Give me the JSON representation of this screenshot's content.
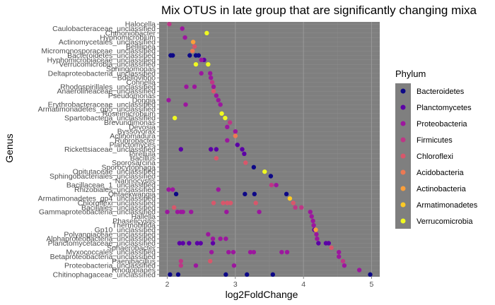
{
  "chart_data": {
    "type": "scatter",
    "title": "Mix OTUS in late group that are significantly changing mixa",
    "xlabel": "log2FoldChange",
    "ylabel": "Genus",
    "xlim": [
      1.88,
      5.12
    ],
    "xticks": [
      2,
      3,
      4,
      5
    ],
    "x_grid": true,
    "y_grid": true,
    "legend": {
      "title": "Phylum",
      "placement": "right",
      "entries": [
        {
          "name": "Bacteroidetes",
          "color": "#0d0887"
        },
        {
          "name": "Planctomycetes",
          "color": "#5c01a6"
        },
        {
          "name": "Proteobacteria",
          "color": "#9c179e"
        },
        {
          "name": "Firmicutes",
          "color": "#bd3786"
        },
        {
          "name": "Chloroflexi",
          "color": "#d8576b"
        },
        {
          "name": "Acidobacteria",
          "color": "#ed7953"
        },
        {
          "name": "Actinobacteria",
          "color": "#fb9f3a"
        },
        {
          "name": "Armatimonadetes",
          "color": "#fdca26"
        },
        {
          "name": "Verrucomicrobia",
          "color": "#f0f921"
        }
      ]
    },
    "genera": [
      "Halocella",
      "Caulobacteraceae_unclassified",
      "Chthoniobacter",
      "Hyphomicrobium",
      "Actinomycetales_unclassified",
      "Bellilinea",
      "Micromonosporaceae_unclassified",
      "Bacteroidetes_unclassified",
      "Hyphomicrobiaceae_unclassified",
      "Verrucomicrobia_unclassified",
      "Sphingomonas",
      "Deltaproteobacteria_unclassified",
      "Bdellovibrio",
      "Cohnella",
      "Rhodospirillales_unclassified",
      "Anaerolineaceae_unclassified",
      "Pseudomonas",
      "Dongia",
      "Erythrobacteraceae_unclassified",
      "Armatimonadetes_gp5_unclassified",
      "Roseimicrobium",
      "Spartobacteria_unclassified",
      "Brevundimonas",
      "Devosia",
      "Byssovorax",
      "Actinomadura",
      "Rubrobacter",
      "Planctomyces",
      "Rickettsiaceae_unclassified",
      "Pirellula",
      "Bacillus",
      "Sporosarcina",
      "Sporocytophaga",
      "Opitutaceae_unclassified",
      "Sphingobacteriales_unclassified",
      "Nannocystis",
      "Bacillaceae_1_unclassified",
      "Rhizobiales_unclassified",
      "Ohtaekwangia",
      "Armatimonadetes_gp4_unclassified",
      "Chloroflexi_unclassified",
      "Bacillales_unclassified",
      "Gammaproteobacteria_unclassified",
      "Hallella",
      "Phaselicystis",
      "Thermobifida",
      "Gp10_unclassified",
      "Polyangiaceae_unclassified",
      "Alphaproteobacteria_unclassified",
      "Planctomycetaceae_unclassified",
      "Sphaerobacter",
      "Myxococcales_unclassified",
      "Betaproteobacteria_unclassified",
      "Paenibacillus",
      "Proteobacteria_unclassified",
      "Rhodoplanes",
      "Chitinophagaceae_unclassified"
    ],
    "series": [
      {
        "name": "Bacteroidetes",
        "points": [
          {
            "x": 2.05,
            "y": "Bacteroidetes_unclassified"
          },
          {
            "x": 2.08,
            "y": "Bacteroidetes_unclassified"
          },
          {
            "x": 2.33,
            "y": "Bacteroidetes_unclassified"
          },
          {
            "x": 2.42,
            "y": "Bacteroidetes_unclassified"
          },
          {
            "x": 2.46,
            "y": "Bacteroidetes_unclassified"
          },
          {
            "x": 3.27,
            "y": "Sporocytophaga"
          },
          {
            "x": 3.52,
            "y": "Sphingobacteriales_unclassified"
          },
          {
            "x": 2.13,
            "y": "Ohtaekwangia"
          },
          {
            "x": 3.14,
            "y": "Ohtaekwangia"
          },
          {
            "x": 3.28,
            "y": "Ohtaekwangia"
          },
          {
            "x": 3.75,
            "y": "Ohtaekwangia"
          },
          {
            "x": 2.04,
            "y": "Chitinophagaceae_unclassified"
          },
          {
            "x": 2.16,
            "y": "Chitinophagaceae_unclassified"
          },
          {
            "x": 2.86,
            "y": "Chitinophagaceae_unclassified"
          },
          {
            "x": 3.17,
            "y": "Chitinophagaceae_unclassified"
          },
          {
            "x": 3.55,
            "y": "Chitinophagaceae_unclassified"
          },
          {
            "x": 4.98,
            "y": "Chitinophagaceae_unclassified"
          }
        ]
      },
      {
        "name": "Planctomycetes",
        "points": [
          {
            "x": 2.54,
            "y": "Hyphomicrobiaceae_unclassified"
          },
          {
            "x": 3.03,
            "y": "Planctomyces"
          },
          {
            "x": 2.2,
            "y": "Rickettsiaceae_unclassified"
          },
          {
            "x": 2.64,
            "y": "Rickettsiaceae_unclassified"
          },
          {
            "x": 2.72,
            "y": "Rickettsiaceae_unclassified"
          },
          {
            "x": 3.1,
            "y": "Rickettsiaceae_unclassified"
          },
          {
            "x": 3.13,
            "y": "Pirellula"
          },
          {
            "x": 4.16,
            "y": "Gp10_unclassified"
          },
          {
            "x": 2.18,
            "y": "Planctomycetaceae_unclassified"
          },
          {
            "x": 2.23,
            "y": "Planctomycetaceae_unclassified"
          },
          {
            "x": 2.32,
            "y": "Planctomycetaceae_unclassified"
          },
          {
            "x": 2.44,
            "y": "Planctomycetaceae_unclassified"
          },
          {
            "x": 2.49,
            "y": "Planctomycetaceae_unclassified"
          },
          {
            "x": 2.67,
            "y": "Planctomycetaceae_unclassified"
          },
          {
            "x": 4.22,
            "y": "Planctomycetaceae_unclassified"
          },
          {
            "x": 4.33,
            "y": "Planctomycetaceae_unclassified"
          },
          {
            "x": 4.37,
            "y": "Planctomycetaceae_unclassified"
          }
        ]
      },
      {
        "name": "Proteobacteria",
        "points": [
          {
            "x": 2.22,
            "y": "Caulobacteraceae_unclassified"
          },
          {
            "x": 2.26,
            "y": "Hyphomicrobium"
          },
          {
            "x": 2.5,
            "y": "Hyphomicrobiaceae_unclassified"
          },
          {
            "x": 2.5,
            "y": "Deltaproteobacteria_unclassified"
          },
          {
            "x": 2.63,
            "y": "Deltaproteobacteria_unclassified"
          },
          {
            "x": 2.64,
            "y": "Bdellovibrio"
          },
          {
            "x": 2.28,
            "y": "Rhodospirillales_unclassified"
          },
          {
            "x": 2.4,
            "y": "Rhodospirillales_unclassified"
          },
          {
            "x": 2.68,
            "y": "Rhodospirillales_unclassified"
          },
          {
            "x": 2.72,
            "y": "Pseudomonas"
          },
          {
            "x": 2.02,
            "y": "Dongia"
          },
          {
            "x": 2.75,
            "y": "Dongia"
          },
          {
            "x": 2.27,
            "y": "Erythrobacteraceae_unclassified"
          },
          {
            "x": 2.78,
            "y": "Erythrobacteraceae_unclassified"
          },
          {
            "x": 2.88,
            "y": "Devosia"
          },
          {
            "x": 3.0,
            "y": "Byssovorax"
          },
          {
            "x": 2.88,
            "y": "Rubrobacter"
          },
          {
            "x": 3.6,
            "y": "Bacillaceae_1_unclassified"
          },
          {
            "x": 2.02,
            "y": "Rhizobiales_unclassified"
          },
          {
            "x": 2.08,
            "y": "Rhizobiales_unclassified"
          },
          {
            "x": 2.75,
            "y": "Rhizobiales_unclassified"
          },
          {
            "x": 2.0,
            "y": "Gammaproteobacteria_unclassified"
          },
          {
            "x": 2.15,
            "y": "Gammaproteobacteria_unclassified"
          },
          {
            "x": 2.2,
            "y": "Gammaproteobacteria_unclassified"
          },
          {
            "x": 2.23,
            "y": "Gammaproteobacteria_unclassified"
          },
          {
            "x": 2.35,
            "y": "Gammaproteobacteria_unclassified"
          },
          {
            "x": 2.87,
            "y": "Gammaproteobacteria_unclassified"
          },
          {
            "x": 3.35,
            "y": "Gammaproteobacteria_unclassified"
          },
          {
            "x": 4.1,
            "y": "Gammaproteobacteria_unclassified"
          },
          {
            "x": 4.12,
            "y": "Hallella"
          },
          {
            "x": 4.14,
            "y": "Phaselicystis"
          },
          {
            "x": 4.15,
            "y": "Thermobifida"
          },
          {
            "x": 2.6,
            "y": "Polyangiaceae_unclassified"
          },
          {
            "x": 4.19,
            "y": "Polyangiaceae_unclassified"
          },
          {
            "x": 2.67,
            "y": "Alphaproteobacteria_unclassified"
          },
          {
            "x": 2.78,
            "y": "Alphaproteobacteria_unclassified"
          },
          {
            "x": 2.86,
            "y": "Alphaproteobacteria_unclassified"
          },
          {
            "x": 4.2,
            "y": "Alphaproteobacteria_unclassified"
          },
          {
            "x": 2.65,
            "y": "Myxococcales_unclassified"
          },
          {
            "x": 2.9,
            "y": "Myxococcales_unclassified"
          },
          {
            "x": 2.97,
            "y": "Myxococcales_unclassified"
          },
          {
            "x": 3.22,
            "y": "Myxococcales_unclassified"
          },
          {
            "x": 3.27,
            "y": "Myxococcales_unclassified"
          },
          {
            "x": 3.68,
            "y": "Myxococcales_unclassified"
          },
          {
            "x": 3.76,
            "y": "Myxococcales_unclassified"
          },
          {
            "x": 4.52,
            "y": "Myxococcales_unclassified"
          },
          {
            "x": 4.52,
            "y": "Betaproteobacteria_unclassified"
          },
          {
            "x": 2.42,
            "y": "Proteobacteria_unclassified"
          },
          {
            "x": 2.98,
            "y": "Proteobacteria_unclassified"
          },
          {
            "x": 4.6,
            "y": "Proteobacteria_unclassified"
          },
          {
            "x": 4.82,
            "y": "Rhodoplanes"
          }
        ]
      },
      {
        "name": "Firmicutes",
        "points": [
          {
            "x": 2.03,
            "y": "Halocella"
          },
          {
            "x": 2.66,
            "y": "Cohnella"
          },
          {
            "x": 2.92,
            "y": "Brevundimonas"
          },
          {
            "x": 3.53,
            "y": "Bacillaceae_1_unclassified"
          },
          {
            "x": 3.88,
            "y": "Bacillales_unclassified"
          },
          {
            "x": 3.97,
            "y": "Bacillales_unclassified"
          },
          {
            "x": 2.2,
            "y": "Paenibacillus"
          },
          {
            "x": 4.58,
            "y": "Paenibacillus"
          },
          {
            "x": 2.2,
            "y": "Proteobacteria_unclassified"
          }
        ]
      },
      {
        "name": "Chloroflexi",
        "points": [
          {
            "x": 2.4,
            "y": "Bellilinea"
          },
          {
            "x": 2.68,
            "y": "Anaerolineaceae_unclassified"
          },
          {
            "x": 2.72,
            "y": "Bacillus"
          },
          {
            "x": 3.15,
            "y": "Sporosarcina"
          },
          {
            "x": 2.1,
            "y": "Bacillales_unclassified"
          },
          {
            "x": 2.68,
            "y": "Chloroflexi_unclassified"
          },
          {
            "x": 2.82,
            "y": "Chloroflexi_unclassified"
          },
          {
            "x": 2.88,
            "y": "Chloroflexi_unclassified"
          },
          {
            "x": 2.93,
            "y": "Chloroflexi_unclassified"
          },
          {
            "x": 3.3,
            "y": "Chloroflexi_unclassified"
          },
          {
            "x": 3.85,
            "y": "Chloroflexi_unclassified"
          },
          {
            "x": 4.41,
            "y": "Sphaerobacter"
          },
          {
            "x": 2.63,
            "y": "Paenibacillus"
          }
        ]
      },
      {
        "name": "Acidobacteria",
        "points": [
          {
            "x": 2.37,
            "y": "Micromonosporaceae_unclassified"
          },
          {
            "x": 3.0,
            "y": "Actinomadura"
          }
        ]
      },
      {
        "name": "Actinobacteria",
        "points": [
          {
            "x": 2.38,
            "y": "Actinomycetales_unclassified"
          },
          {
            "x": 4.18,
            "y": "Gp10_unclassified"
          }
        ]
      },
      {
        "name": "Armatimonadetes",
        "points": [
          {
            "x": 3.8,
            "y": "Armatimonadetes_gp4_unclassified"
          }
        ]
      },
      {
        "name": "Verrucomicrobia",
        "points": [
          {
            "x": 2.58,
            "y": "Chthoniobacter"
          },
          {
            "x": 2.6,
            "y": "Verrucomicrobia_unclassified"
          },
          {
            "x": 2.42,
            "y": "Verrucomicrobia_unclassified"
          },
          {
            "x": 2.8,
            "y": "Roseimicrobium"
          },
          {
            "x": 2.11,
            "y": "Spartobacteria_unclassified"
          },
          {
            "x": 2.85,
            "y": "Spartobacteria_unclassified"
          },
          {
            "x": 3.43,
            "y": "Opitutaceae_unclassified"
          }
        ]
      }
    ]
  }
}
